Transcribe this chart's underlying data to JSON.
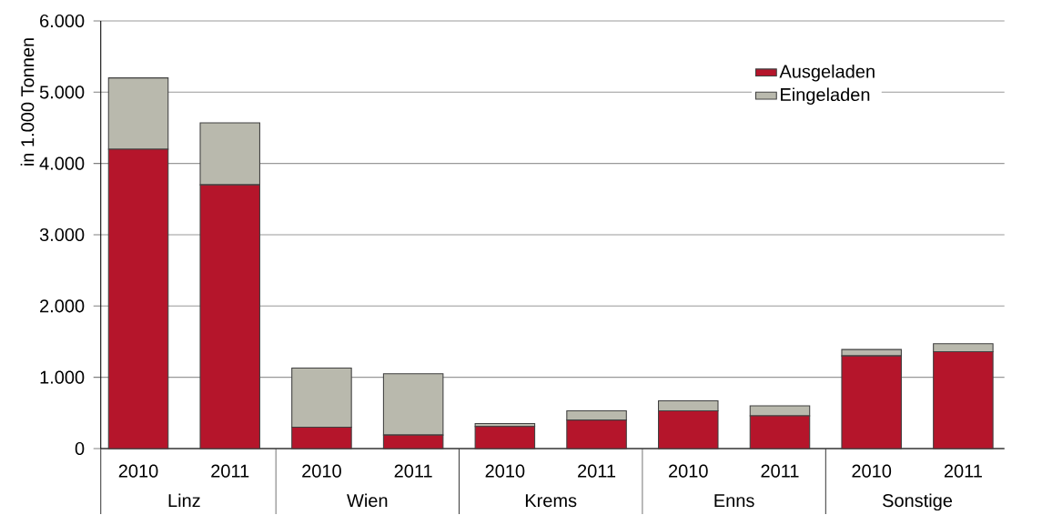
{
  "chart_data": {
    "type": "bar",
    "stacked": true,
    "ylabel": "in 1.000 Tonnen",
    "categories": [
      "2010",
      "2011",
      "2010",
      "2011",
      "2010",
      "2011",
      "2010",
      "2011",
      "2010",
      "2011"
    ],
    "annotations": [
      "Linz",
      "Wien",
      "Krems",
      "Enns",
      "Sonstige"
    ],
    "series": [
      {
        "name": "Ausgeladen",
        "color": "#b5152b",
        "values": [
          4200,
          3700,
          300,
          190,
          310,
          400,
          530,
          460,
          1300,
          1360
        ]
      },
      {
        "name": "Eingeladen",
        "color": "#b9b9ad",
        "values": [
          1000,
          870,
          830,
          860,
          40,
          130,
          140,
          140,
          90,
          110
        ]
      }
    ],
    "ylim": [
      0,
      6000
    ],
    "yticks": [
      0,
      {
        "value": 1000,
        "label": "1.000"
      },
      {
        "value": 2000,
        "label": "2.000"
      },
      {
        "value": 3000,
        "label": "3.000"
      },
      {
        "value": 4000,
        "label": "4.000"
      },
      {
        "value": 5000,
        "label": "5.000"
      },
      {
        "value": 6000,
        "label": "6.000"
      }
    ],
    "grid": "y",
    "legend": "top right"
  }
}
